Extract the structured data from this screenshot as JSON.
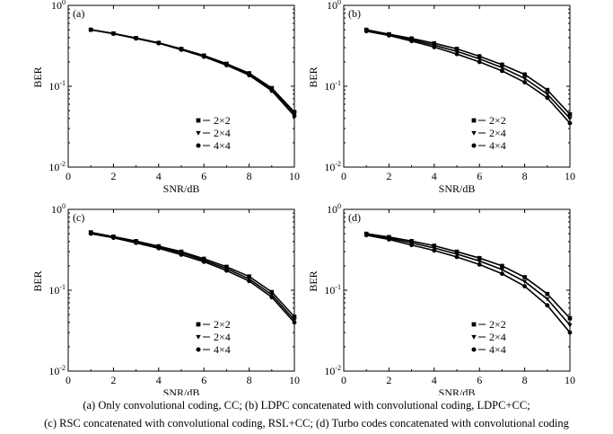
{
  "caption": {
    "line1": "(a)  Only convolutional coding, CC; (b) LDPC concatenated with convolutional coding, LDPC+CC;",
    "line2": "(c) RSC concatenated with convolutional coding, RSL+CC; (d) Turbo codes concatenated with convolutional coding"
  },
  "chart_data": [
    {
      "type": "line",
      "panel_label": "(a)",
      "xlabel": "SNR/dB",
      "ylabel": "BER",
      "xlim": [
        0,
        10
      ],
      "ylim": [
        0.01,
        1
      ],
      "yscale": "log",
      "x_ticks": [
        "0",
        "2",
        "4",
        "6",
        "8",
        "10"
      ],
      "y_ticks": [
        {
          "base": "10",
          "exp": "0"
        },
        {
          "base": "10",
          "exp": "-1"
        },
        {
          "base": "10",
          "exp": "-2"
        }
      ],
      "legend_position": "bottom-right",
      "x": [
        1,
        2,
        3,
        4,
        5,
        6,
        7,
        8,
        9,
        10
      ],
      "series": [
        {
          "name": "2×2",
          "marker": "square",
          "values": [
            0.5,
            0.45,
            0.395,
            0.345,
            0.29,
            0.24,
            0.19,
            0.145,
            0.095,
            0.048
          ]
        },
        {
          "name": "2×4",
          "marker": "triangle-down",
          "values": [
            0.5,
            0.448,
            0.393,
            0.343,
            0.287,
            0.236,
            0.186,
            0.141,
            0.092,
            0.046
          ]
        },
        {
          "name": "4×4",
          "marker": "circle",
          "values": [
            0.5,
            0.446,
            0.39,
            0.34,
            0.283,
            0.232,
            0.182,
            0.137,
            0.088,
            0.043
          ]
        }
      ]
    },
    {
      "type": "line",
      "panel_label": "(b)",
      "xlabel": "SNR/dB",
      "ylabel": "BER",
      "xlim": [
        0,
        10
      ],
      "ylim": [
        0.01,
        1
      ],
      "yscale": "log",
      "x_ticks": [
        "0",
        "2",
        "4",
        "6",
        "8",
        "10"
      ],
      "y_ticks": [
        {
          "base": "10",
          "exp": "0"
        },
        {
          "base": "10",
          "exp": "-1"
        },
        {
          "base": "10",
          "exp": "-2"
        }
      ],
      "legend_position": "bottom-right",
      "x": [
        1,
        2,
        3,
        4,
        5,
        6,
        7,
        8,
        9,
        10
      ],
      "series": [
        {
          "name": "2×2",
          "marker": "square",
          "values": [
            0.5,
            0.44,
            0.39,
            0.34,
            0.29,
            0.235,
            0.185,
            0.14,
            0.09,
            0.045
          ]
        },
        {
          "name": "2×4",
          "marker": "triangle-down",
          "values": [
            0.49,
            0.432,
            0.375,
            0.322,
            0.27,
            0.218,
            0.17,
            0.125,
            0.08,
            0.04
          ]
        },
        {
          "name": "4×4",
          "marker": "circle",
          "values": [
            0.48,
            0.425,
            0.362,
            0.305,
            0.25,
            0.2,
            0.155,
            0.112,
            0.072,
            0.035
          ]
        }
      ]
    },
    {
      "type": "line",
      "panel_label": "(c)",
      "xlabel": "SNR/dB",
      "ylabel": "BER",
      "xlim": [
        0,
        10
      ],
      "ylim": [
        0.01,
        1
      ],
      "yscale": "log",
      "x_ticks": [
        "0",
        "2",
        "4",
        "6",
        "8",
        "10"
      ],
      "y_ticks": [
        {
          "base": "10",
          "exp": "0"
        },
        {
          "base": "10",
          "exp": "-1"
        },
        {
          "base": "10",
          "exp": "-2"
        }
      ],
      "legend_position": "bottom-right",
      "x": [
        1,
        2,
        3,
        4,
        5,
        6,
        7,
        8,
        9,
        10
      ],
      "series": [
        {
          "name": "2×2",
          "marker": "square",
          "values": [
            0.52,
            0.46,
            0.405,
            0.35,
            0.3,
            0.245,
            0.195,
            0.148,
            0.095,
            0.047
          ]
        },
        {
          "name": "2×4",
          "marker": "triangle-down",
          "values": [
            0.51,
            0.452,
            0.395,
            0.34,
            0.288,
            0.235,
            0.185,
            0.138,
            0.088,
            0.043
          ]
        },
        {
          "name": "4×4",
          "marker": "circle",
          "values": [
            0.5,
            0.445,
            0.385,
            0.33,
            0.275,
            0.225,
            0.175,
            0.13,
            0.082,
            0.04
          ]
        }
      ]
    },
    {
      "type": "line",
      "panel_label": "(d)",
      "xlabel": "SNR/dB",
      "ylabel": "BER",
      "xlim": [
        0,
        10
      ],
      "ylim": [
        0.01,
        1
      ],
      "yscale": "log",
      "x_ticks": [
        "0",
        "2",
        "4",
        "6",
        "8",
        "10"
      ],
      "y_ticks": [
        {
          "base": "10",
          "exp": "0"
        },
        {
          "base": "10",
          "exp": "-1"
        },
        {
          "base": "10",
          "exp": "-2"
        }
      ],
      "legend_position": "bottom-right",
      "x": [
        1,
        2,
        3,
        4,
        5,
        6,
        7,
        8,
        9,
        10
      ],
      "series": [
        {
          "name": "2×2",
          "marker": "square",
          "values": [
            0.5,
            0.455,
            0.405,
            0.355,
            0.3,
            0.25,
            0.2,
            0.145,
            0.09,
            0.045
          ]
        },
        {
          "name": "2×4",
          "marker": "triangle-down",
          "values": [
            0.49,
            0.44,
            0.385,
            0.333,
            0.28,
            0.23,
            0.18,
            0.128,
            0.078,
            0.037
          ]
        },
        {
          "name": "4×4",
          "marker": "circle",
          "values": [
            0.48,
            0.425,
            0.362,
            0.31,
            0.258,
            0.208,
            0.16,
            0.112,
            0.065,
            0.03
          ]
        }
      ]
    }
  ]
}
